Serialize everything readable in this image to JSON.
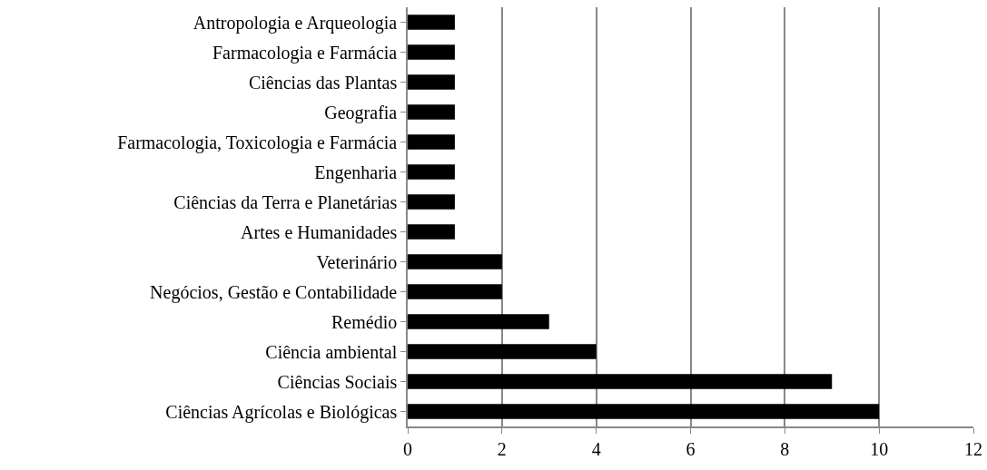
{
  "chart_data": {
    "type": "bar",
    "orientation": "horizontal",
    "categories": [
      "Antropologia e Arqueologia",
      "Farmacologia e Farmácia",
      "Ciências das Plantas",
      "Geografia",
      "Farmacologia, Toxicologia e Farmácia",
      "Engenharia",
      "Ciências da Terra e Planetárias",
      "Artes e Humanidades",
      "Veterinário",
      "Negócios, Gestão e Contabilidade",
      "Remédio",
      "Ciência ambiental",
      "Ciências Sociais",
      "Ciências Agrícolas e Biológicas"
    ],
    "values": [
      1,
      1,
      1,
      1,
      1,
      1,
      1,
      1,
      2,
      2,
      3,
      4,
      9,
      10
    ],
    "color": "#000000",
    "xlim": [
      0,
      12
    ],
    "xticks": [
      0,
      2,
      4,
      6,
      8,
      10,
      12
    ],
    "grid": "x"
  }
}
